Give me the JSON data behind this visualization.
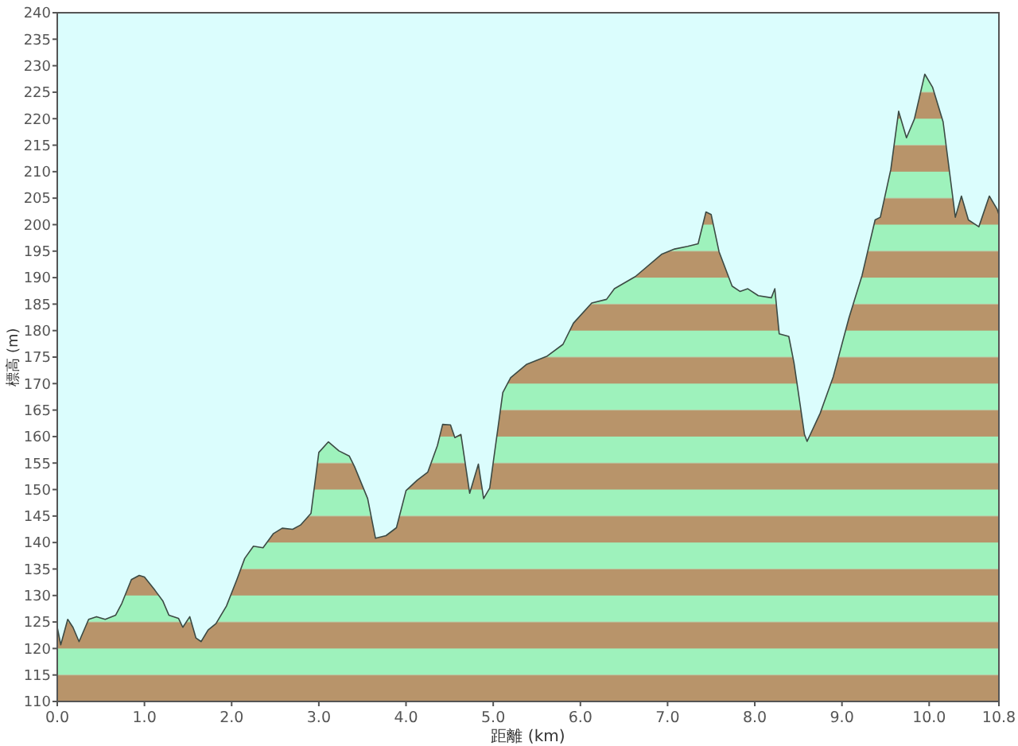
{
  "chart_data": {
    "type": "area",
    "xlabel": "距離 (km)",
    "ylabel": "標高 (m)",
    "xlim": [
      0,
      10.8
    ],
    "ylim": [
      110,
      240
    ],
    "xticks": [
      {
        "value": 0,
        "label": "0.0"
      },
      {
        "value": 1,
        "label": "1.0"
      },
      {
        "value": 2,
        "label": "2.0"
      },
      {
        "value": 3,
        "label": "3.0"
      },
      {
        "value": 4,
        "label": "4.0"
      },
      {
        "value": 5,
        "label": "5.0"
      },
      {
        "value": 6,
        "label": "6.0"
      },
      {
        "value": 7,
        "label": "7.0"
      },
      {
        "value": 8,
        "label": "8.0"
      },
      {
        "value": 9,
        "label": "9.0"
      },
      {
        "value": 10,
        "label": "10.0"
      },
      {
        "value": 10.8,
        "label": "10.8"
      }
    ],
    "yticks": [
      110,
      115,
      120,
      125,
      130,
      135,
      140,
      145,
      150,
      155,
      160,
      165,
      170,
      175,
      180,
      185,
      190,
      195,
      200,
      205,
      210,
      215,
      220,
      225,
      230,
      235,
      240
    ],
    "grid": false,
    "colors": [
      "#b8946a",
      "#9ef2bc"
    ],
    "series": [
      {
        "color": "#3c4a44",
        "x": [
          0,
          0.04,
          0.12,
          0.18,
          0.25,
          0.36,
          0.45,
          0.55,
          0.67,
          0.74,
          0.85,
          0.94,
          1.0,
          1.12,
          1.21,
          1.28,
          1.39,
          1.44,
          1.52,
          1.59,
          1.65,
          1.73,
          1.82,
          1.94,
          2.06,
          2.15,
          2.25,
          2.36,
          2.48,
          2.58,
          2.7,
          2.79,
          2.91,
          3.0,
          3.11,
          3.23,
          3.35,
          3.41,
          3.56,
          3.65,
          3.77,
          3.89,
          4.0,
          4.13,
          4.25,
          4.36,
          4.42,
          4.51,
          4.56,
          4.63,
          4.73,
          4.83,
          4.89,
          4.96,
          5.11,
          5.2,
          5.38,
          5.62,
          5.8,
          5.92,
          6.13,
          6.3,
          6.39,
          6.63,
          6.93,
          7.08,
          7.23,
          7.35,
          7.44,
          7.5,
          7.59,
          7.74,
          7.83,
          7.92,
          8.04,
          8.19,
          8.23,
          8.28,
          8.39,
          8.45,
          8.57,
          8.6,
          8.75,
          8.9,
          9.08,
          9.23,
          9.38,
          9.44,
          9.56,
          9.65,
          9.74,
          9.83,
          9.95,
          10.04,
          10.16,
          10.3,
          10.37,
          10.45,
          10.57,
          10.69,
          10.78,
          10.8,
          10.8
        ],
        "values": [
          124,
          120.7,
          125.5,
          124,
          121.3,
          125.5,
          126,
          125.5,
          126.3,
          128.5,
          133,
          133.8,
          133.5,
          131,
          129,
          126.3,
          125.7,
          124,
          126,
          122,
          121.3,
          123.5,
          124.7,
          128,
          133,
          137,
          139.3,
          139,
          141.7,
          142.7,
          142.5,
          143.3,
          145.5,
          157,
          159,
          157.3,
          156.3,
          154.3,
          148.3,
          140.8,
          141.3,
          142.8,
          149.8,
          151.8,
          153.3,
          158.3,
          162.3,
          162.2,
          159.8,
          160.4,
          149.3,
          154.8,
          148.3,
          150.3,
          168.3,
          171.1,
          173.6,
          175.2,
          177.4,
          181.4,
          185.2,
          185.9,
          187.9,
          190.2,
          194.4,
          195.4,
          195.9,
          196.4,
          202.4,
          201.9,
          194.9,
          188.4,
          187.4,
          187.9,
          186.6,
          186.2,
          187.9,
          179.4,
          178.9,
          173.9,
          160.4,
          159.1,
          164.4,
          171.3,
          182.4,
          190.4,
          200.9,
          201.4,
          210.4,
          221.4,
          216.4,
          219.9,
          228.4,
          225.9,
          219.4,
          201.4,
          205.4,
          200.9,
          199.6,
          205.4,
          202.9,
          201.9,
          186
        ]
      }
    ]
  }
}
